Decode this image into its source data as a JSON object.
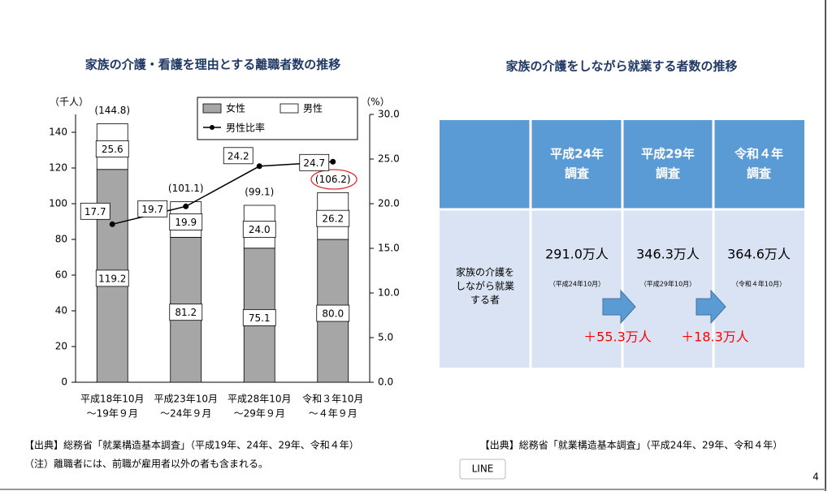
{
  "chart_data": {
    "type": "bar",
    "title": "家族の介護・看護を理由とする離職者数の推移",
    "y_label": "（千人）",
    "y2_label": "（%）",
    "categories": [
      [
        "平成18年10月",
        "～19年９月"
      ],
      [
        "平成23年10月",
        "～24年９月"
      ],
      [
        "平成28年10月",
        "～29年９月"
      ],
      [
        "令和３年10月",
        "～４年９月"
      ]
    ],
    "series": [
      {
        "name": "女性",
        "color": "#a6a6a6",
        "values": [
          119.2,
          81.2,
          75.1,
          80.0
        ],
        "value_labels": [
          "119.2",
          "81.2",
          "75.1",
          "80.0"
        ]
      },
      {
        "name": "男性",
        "color": "#ffffff",
        "values": [
          25.6,
          19.9,
          24.0,
          26.2
        ],
        "value_labels": [
          "25.6",
          "19.9",
          "24.0",
          "26.2"
        ]
      },
      {
        "name": "男性比率",
        "color": "#000000",
        "type": "line",
        "axis": "y2",
        "values": [
          17.7,
          19.7,
          24.2,
          24.7
        ]
      }
    ],
    "total_labels": [
      "(144.8)",
      "(101.1)",
      "(99.1)",
      "(106.2)"
    ],
    "ylim": [
      0,
      150
    ],
    "yticks": [
      0,
      20,
      40,
      60,
      80,
      100,
      120,
      140
    ],
    "y2lim": [
      0,
      30
    ],
    "y2ticks": [
      {
        "value": 0,
        "label": "0.0"
      },
      {
        "value": 5,
        "label": "5.0"
      },
      {
        "value": 10,
        "label": "10.0"
      },
      {
        "value": 15,
        "label": "15.0"
      },
      {
        "value": 20,
        "label": "20.0"
      },
      {
        "value": 25,
        "label": "25.0"
      },
      {
        "value": 30,
        "label": "30.0"
      }
    ],
    "source": "【出典】総務省「就業構造基本調査」（平成19年、24年、29年、令和４年）",
    "note": "（注）離職者には、前職が雇用者以外の者も含まれる。"
  },
  "panel2": {
    "title": "家族の介護をしながら就業する者数の推移",
    "table": {
      "headers": [
        [
          "平成24年",
          "調査"
        ],
        [
          "平成29年",
          "調査"
        ],
        [
          "令和４年",
          "調査"
        ]
      ],
      "row_label": [
        "家族の介護を",
        "しながら就業",
        "する者"
      ],
      "cells": [
        {
          "value": "291.0万人",
          "date": "（平成24年10月）"
        },
        {
          "value": "346.3万人",
          "date": "（平成29年10月）"
        },
        {
          "value": "364.6万人",
          "date": "（令和４年10月）"
        }
      ],
      "increases": [
        "＋55.3万人",
        "＋18.3万人"
      ]
    },
    "source": "【出典】総務省「就業構造基本調査」（平成24年、29年、令和４年）"
  },
  "tooltip": "LINE",
  "page_number": "4"
}
